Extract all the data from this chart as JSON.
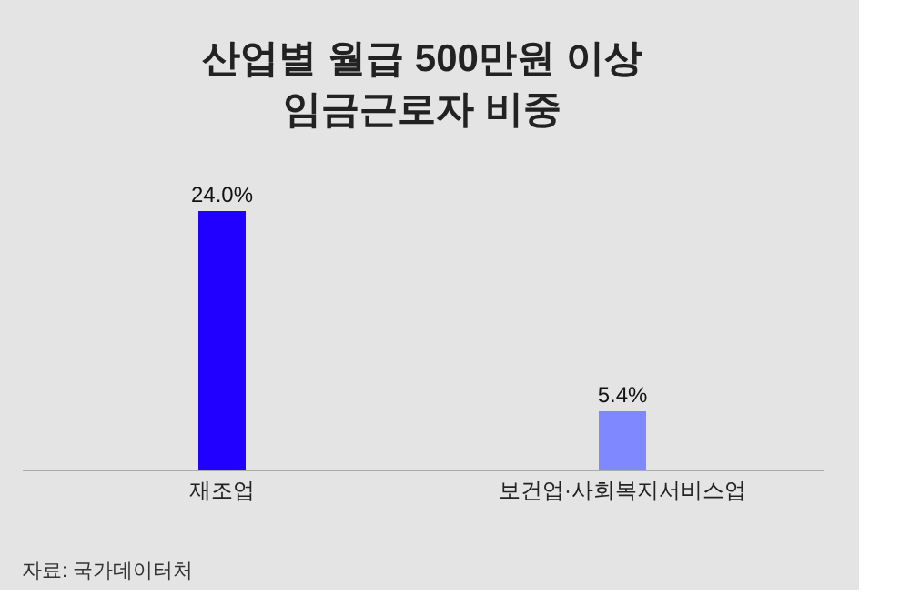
{
  "chart_data": {
    "type": "bar",
    "title": [
      "산업별 월급 500만원 이상",
      "임금근로자 비중"
    ],
    "categories": [
      "재조업",
      "보건업·사회복지서비스업"
    ],
    "values": [
      24.0,
      5.4
    ],
    "colors": [
      "#2200ff",
      "#7f88ff"
    ],
    "value_labels": [
      "24.0%",
      "5.4%"
    ],
    "tick_labels": "x",
    "annotations": [
      "자료: 국가데이터처"
    ]
  }
}
